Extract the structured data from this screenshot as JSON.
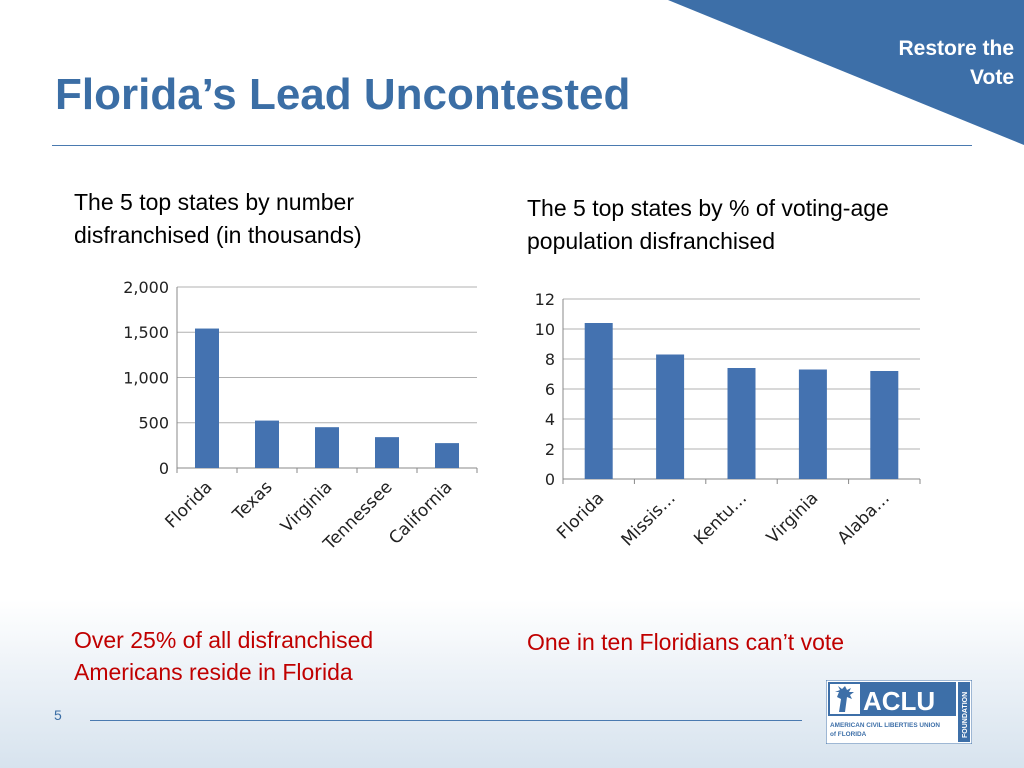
{
  "slide": {
    "title": "Florida’s Lead Uncontested",
    "corner_label": "Restore the Vote",
    "page_number": "5",
    "accent_color": "#3d6fa8",
    "note_color": "#c00000"
  },
  "left": {
    "caption": "The 5 top states by number disfranchised (in thousands)",
    "note": "Over 25% of all disfranchised Americans reside in Florida"
  },
  "right": {
    "caption": "The 5 top states by % of voting-age population disfranchised",
    "note": "One in ten Floridians can’t vote"
  },
  "logo": {
    "name": "ACLU",
    "subtitle": "AMERICAN CIVIL LIBERTIES UNION of FLORIDA",
    "side_label": "FOUNDATION"
  },
  "chart_data": [
    {
      "type": "bar",
      "categories": [
        "Florida",
        "Texas",
        "Virginia",
        "Tennessee",
        "California"
      ],
      "values": [
        1541,
        524,
        451,
        341,
        275
      ],
      "ylim": [
        0,
        2000
      ],
      "yticks": [
        0,
        500,
        1000,
        1500,
        2000
      ],
      "ytick_labels": [
        "0",
        "500",
        "1,000",
        "1,500",
        "2,000"
      ],
      "grid": true,
      "bar_color": "#4472b0"
    },
    {
      "type": "bar",
      "categories": [
        "Florida",
        "Missis…",
        "Kentu…",
        "Virginia",
        "Alaba…"
      ],
      "values": [
        10.4,
        8.3,
        7.4,
        7.3,
        7.2
      ],
      "ylim": [
        0,
        12
      ],
      "yticks": [
        0,
        2,
        4,
        6,
        8,
        10,
        12
      ],
      "ytick_labels": [
        "0",
        "2",
        "4",
        "6",
        "8",
        "10",
        "12"
      ],
      "grid": true,
      "bar_color": "#4472b0"
    }
  ]
}
